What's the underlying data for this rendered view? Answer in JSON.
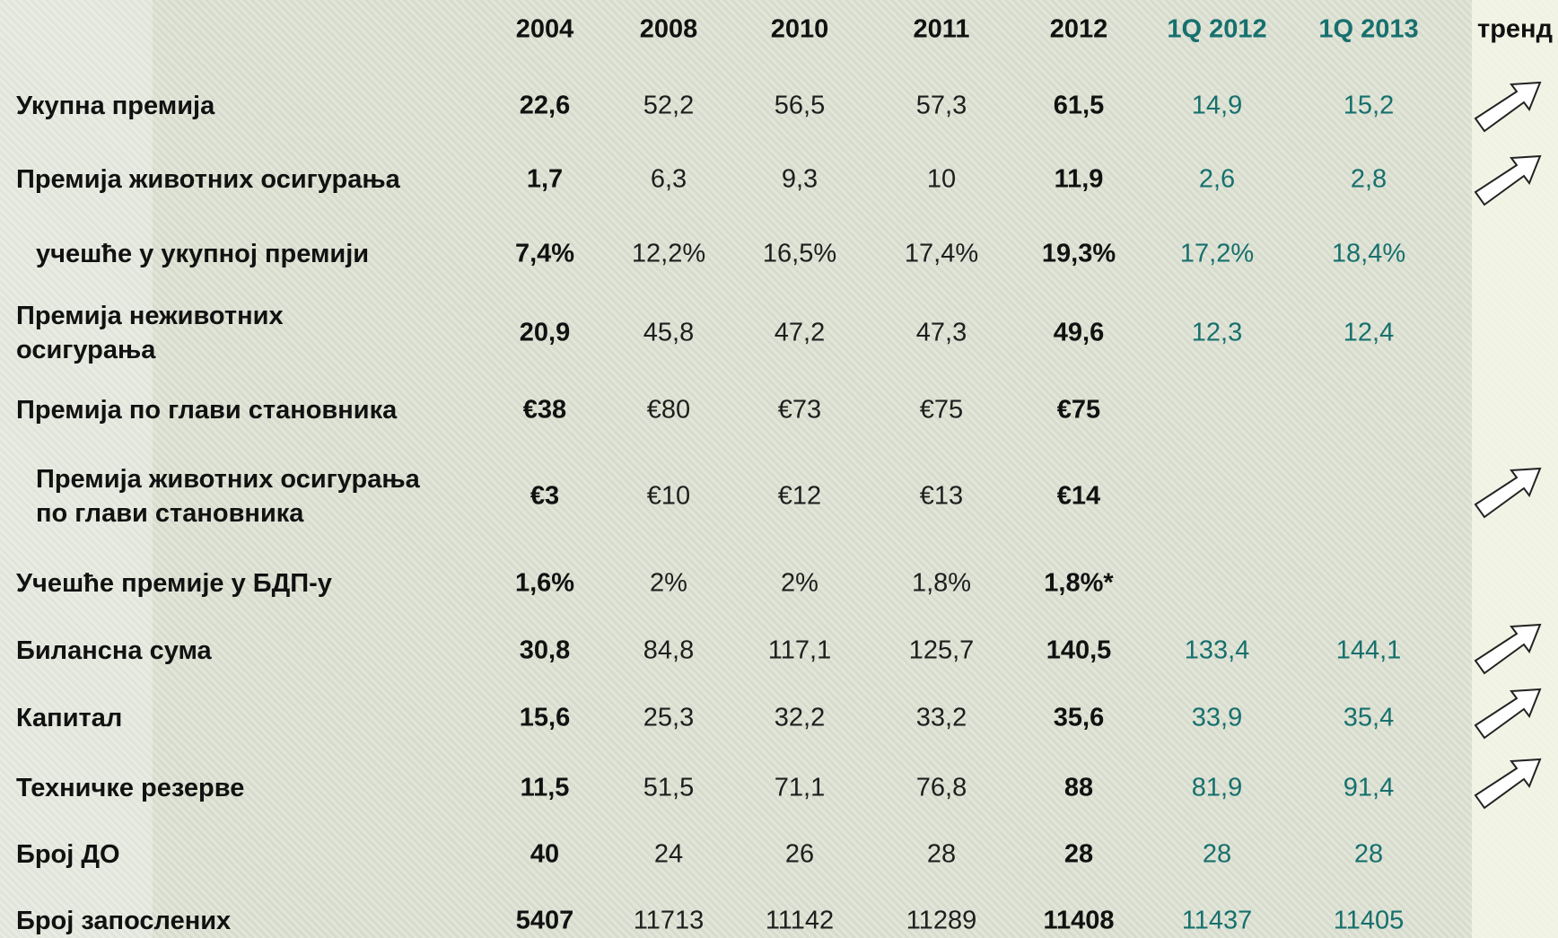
{
  "table": {
    "columns": [
      "2004",
      "2008",
      "2010",
      "2011",
      "2012",
      "1Q 2012",
      "1Q 2013",
      "тренд"
    ],
    "rows": [
      {
        "label": [
          "Укупна премија"
        ],
        "values": [
          "22,6",
          "52,2",
          "56,5",
          "57,3",
          "61,5",
          "14,9",
          "15,2"
        ]
      },
      {
        "label": [
          "Премија животних осигурања"
        ],
        "values": [
          "1,7",
          "6,3",
          "9,3",
          "10",
          "11,9",
          "2,6",
          "2,8"
        ]
      },
      {
        "label": [
          "учешће у укупној премији"
        ],
        "values": [
          "7,4%",
          "12,2%",
          "16,5%",
          "17,4%",
          "19,3%",
          "17,2%",
          "18,4%"
        ]
      },
      {
        "label": [
          "Премија неживотних",
          "осигурања"
        ],
        "values": [
          "20,9",
          "45,8",
          "47,2",
          "47,3",
          "49,6",
          "12,3",
          "12,4"
        ]
      },
      {
        "label": [
          "Премија по глави становника"
        ],
        "values": [
          "€38",
          "€80",
          "€73",
          "€75",
          "€75",
          null,
          null
        ]
      },
      {
        "label": [
          "Премија животних осигурања",
          "по глави становника"
        ],
        "values": [
          "€3",
          "€10",
          "€12",
          "€13",
          "€14",
          null,
          null
        ]
      },
      {
        "label": [
          "Учешће премије у БДП-у"
        ],
        "values": [
          "1,6%",
          "2%",
          "2%",
          "1,8%",
          "1,8%*",
          null,
          null
        ]
      },
      {
        "label": [
          "Билансна сума"
        ],
        "values": [
          "30,8",
          "84,8",
          "117,1",
          "125,7",
          "140,5",
          "133,4",
          "144,1"
        ]
      },
      {
        "label": [
          "Капитал"
        ],
        "values": [
          "15,6",
          "25,3",
          "32,2",
          "33,2",
          "35,6",
          "33,9",
          "35,4"
        ]
      },
      {
        "label": [
          "Техничке резерве"
        ],
        "values": [
          "11,5",
          "51,5",
          "71,1",
          "76,8",
          "88",
          "81,9",
          "91,4"
        ]
      },
      {
        "label": [
          "Број ДО"
        ],
        "values": [
          "40",
          "24",
          "26",
          "28",
          "28",
          "28",
          "28"
        ]
      },
      {
        "label": [
          "Број запослених"
        ],
        "values": [
          "5407",
          "11713",
          "11142",
          "11289",
          "11408",
          "11437",
          "11405"
        ]
      }
    ]
  }
}
